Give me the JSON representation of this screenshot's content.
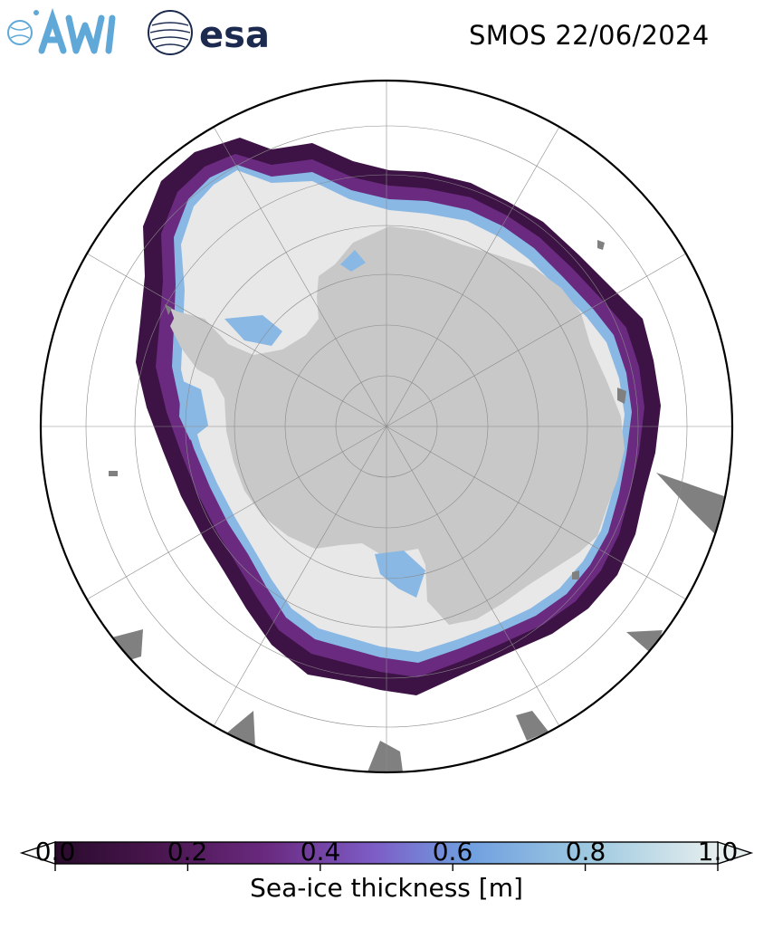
{
  "header": {
    "title": "SMOS 22/06/2024",
    "logos": [
      {
        "name": "AWI",
        "icon": "awi-logo",
        "color": "#5fa8d8"
      },
      {
        "name": "esa",
        "icon": "esa-logo",
        "color": "#1b2a4e"
      }
    ]
  },
  "map": {
    "projection": "south-polar-stereographic",
    "region": "Antarctica",
    "colors": {
      "land": "#c8c8c8",
      "ice_shelf": "#e6e6e6",
      "ocean": "#ffffff",
      "no_data": "#808080",
      "boundary": "#000000",
      "gridlines": "#9a9a9a"
    }
  },
  "colorbar": {
    "label": "Sea-ice thickness [m]",
    "min": 0.0,
    "max": 1.0,
    "extend": "both",
    "ticks": [
      "0.0",
      "0.2",
      "0.4",
      "0.6",
      "0.8",
      "1.0"
    ],
    "colormap_stops": [
      "#2a0b2c",
      "#4a1650",
      "#6a2a80",
      "#7d5cc6",
      "#6f9ee0",
      "#9cc8e0",
      "#e6eeee"
    ]
  }
}
